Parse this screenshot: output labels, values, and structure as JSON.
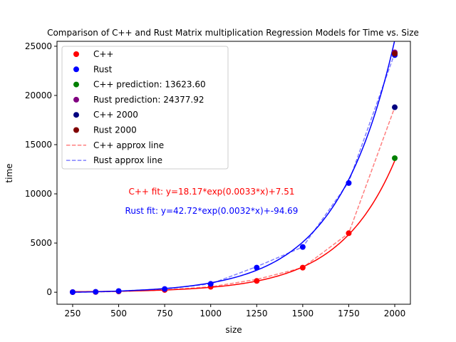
{
  "chart_data": {
    "type": "scatter",
    "title": "Comparison of C++ and Rust Matrix multiplication Regression Models for Time vs. Size",
    "xlabel": "size",
    "ylabel": "time",
    "xlim": [
      165,
      2085
    ],
    "ylim": [
      -1220,
      25500
    ],
    "xticks": [
      250,
      500,
      750,
      1000,
      1250,
      1500,
      1750,
      2000
    ],
    "yticks": [
      0,
      5000,
      10000,
      15000,
      20000,
      25000
    ],
    "grid": false,
    "legend_position": "upper-left",
    "series": [
      {
        "name": "C++",
        "kind": "scatter",
        "color": "#ff0000",
        "x": [
          250,
          375,
          500,
          750,
          1000,
          1250,
          1500,
          1750,
          2000
        ],
        "y": [
          10,
          30,
          80,
          230,
          550,
          1150,
          2500,
          6000,
          24300
        ]
      },
      {
        "name": "Rust",
        "kind": "scatter",
        "color": "#0000ff",
        "x": [
          250,
          375,
          500,
          750,
          1000,
          1250,
          1500,
          1750,
          2000
        ],
        "y": [
          15,
          40,
          120,
          330,
          850,
          2500,
          4600,
          11100,
          24100
        ]
      },
      {
        "name": "C++ prediction: 13623.60",
        "kind": "scatter",
        "color": "#008000",
        "x": [
          2000
        ],
        "y": [
          13623.6
        ]
      },
      {
        "name": "Rust prediction: 24377.92",
        "kind": "scatter",
        "color": "#800080",
        "x": [
          2000
        ],
        "y": [
          24377.92
        ]
      },
      {
        "name": "C++ 2000",
        "kind": "scatter",
        "color": "#000080",
        "x": [
          2000
        ],
        "y": [
          18800
        ]
      },
      {
        "name": "Rust 2000",
        "kind": "scatter",
        "color": "#800000",
        "x": [
          2000
        ],
        "y": [
          24250
        ]
      },
      {
        "name": "C++ approx line",
        "kind": "dashed-line",
        "color": "#ff0000",
        "x": [
          250,
          375,
          500,
          750,
          1000,
          1250,
          1500,
          1750,
          2000
        ],
        "y": [
          10,
          30,
          80,
          230,
          550,
          1300,
          2500,
          6000,
          18800
        ]
      },
      {
        "name": "Rust approx line",
        "kind": "dashed-line",
        "color": "#0000ff",
        "x": [
          250,
          375,
          500,
          750,
          1000,
          1250,
          1500,
          1750,
          2000
        ],
        "y": [
          15,
          40,
          120,
          330,
          850,
          2600,
          4600,
          11200,
          24300
        ]
      }
    ],
    "fits": [
      {
        "label": "C++ fit: y=18.17*exp(0.0033*x)+7.51",
        "color": "#ff0000",
        "a": 18.17,
        "b": 0.0033,
        "c": 7.51
      },
      {
        "label": "Rust fit: y=42.72*exp(0.0032*x)+-94.69",
        "color": "#0000ff",
        "a": 42.72,
        "b": 0.0032,
        "c": -94.69
      }
    ]
  }
}
